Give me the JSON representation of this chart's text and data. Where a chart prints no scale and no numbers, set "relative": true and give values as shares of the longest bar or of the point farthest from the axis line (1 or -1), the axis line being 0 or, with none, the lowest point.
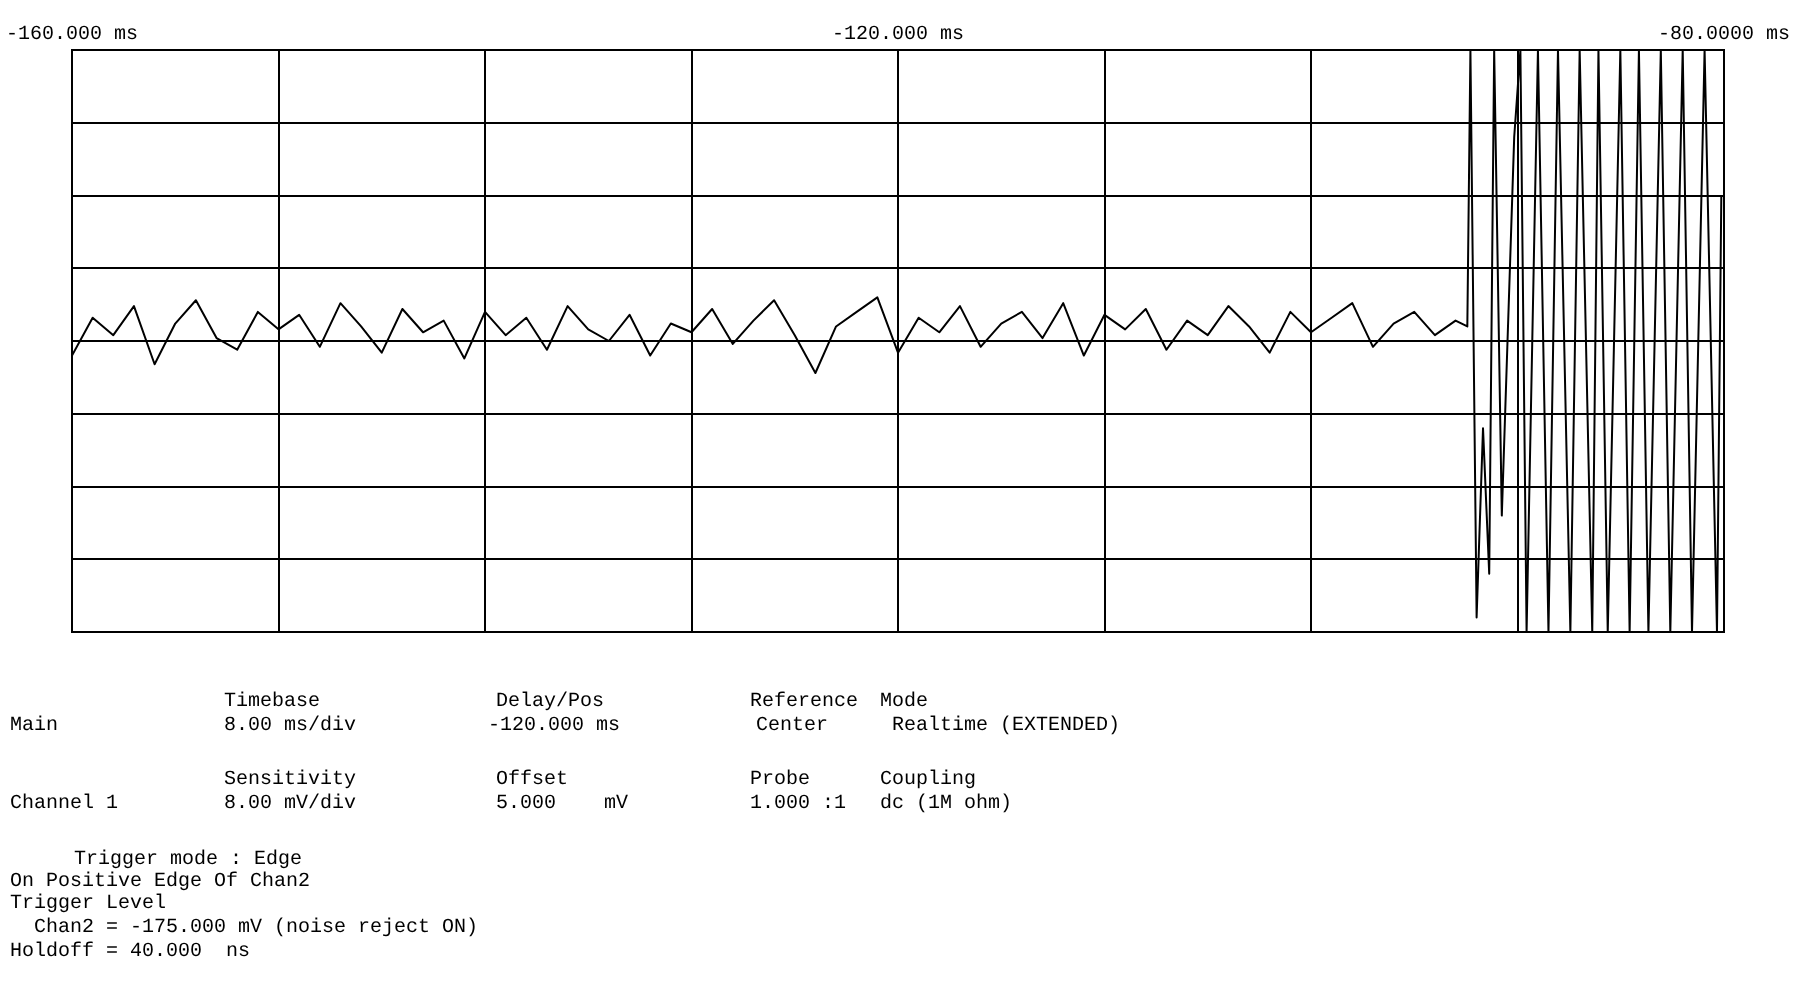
{
  "chart_data": {
    "type": "line",
    "relative": true,
    "grid": true,
    "legend": false,
    "marker": "none",
    "line_style": "solid",
    "xlim": [
      -160,
      -80
    ],
    "xticks": [
      {
        "value": -160,
        "label": "-160.000 ms"
      },
      {
        "value": -150,
        "label": null
      },
      {
        "value": -140,
        "label": null
      },
      {
        "value": -130,
        "label": null
      },
      {
        "value": -120,
        "label": "-120.000 ms"
      },
      {
        "value": -110,
        "label": null
      },
      {
        "value": -100,
        "label": null
      },
      {
        "value": -90,
        "label": null
      },
      {
        "value": -80,
        "label": "-80.0000 ms"
      }
    ],
    "series": [
      {
        "color": "#000000",
        "x": [
          -160,
          -159,
          -158,
          -157,
          -156,
          -155,
          -154,
          -153,
          -152,
          -151,
          -150,
          -149,
          -148,
          -147,
          -146,
          -145,
          -144,
          -143,
          -142,
          -141,
          -140,
          -139,
          -138,
          -137,
          -136,
          -135,
          -134,
          -133,
          -132,
          -131,
          -130,
          -129,
          -128,
          -127,
          -126,
          -125,
          -124,
          -123,
          -122,
          -121,
          -120,
          -119,
          -118,
          -117,
          -116,
          -115,
          -114,
          -113,
          -112,
          -111,
          -110,
          -109,
          -108,
          -107,
          -106,
          -105,
          -104,
          -103,
          -102,
          -101,
          -100,
          -99,
          -98,
          -97,
          -96,
          -95,
          -94,
          -93,
          -92.43,
          -92.28,
          -91.98,
          -91.67,
          -91.37,
          -91.13,
          -90.76,
          -90.16,
          -89.86,
          -89.56,
          -89.01,
          -88.5,
          -88.04,
          -87.44,
          -86.99,
          -86.38,
          -86.08,
          -85.63,
          -85.02,
          -84.57,
          -84.12,
          -83.66,
          -83.06,
          -82.6,
          -82,
          -81.55,
          -80.94,
          -80.34,
          -80.13
        ],
        "values": [
          -0.05,
          0.08,
          0.02,
          0.12,
          -0.08,
          0.06,
          0.14,
          0.01,
          -0.03,
          0.1,
          0.04,
          0.09,
          -0.02,
          0.13,
          0.05,
          -0.04,
          0.11,
          0.03,
          0.07,
          -0.06,
          0.1,
          0.02,
          0.08,
          -0.03,
          0.12,
          0.04,
          0.0,
          0.09,
          -0.05,
          0.06,
          0.03,
          0.11,
          -0.01,
          0.07,
          0.14,
          0.02,
          -0.11,
          0.05,
          0.1,
          0.15,
          -0.04,
          0.08,
          0.03,
          0.12,
          -0.02,
          0.06,
          0.1,
          0.01,
          0.13,
          -0.05,
          0.09,
          0.04,
          0.11,
          -0.03,
          0.07,
          0.02,
          0.12,
          0.05,
          -0.04,
          0.1,
          0.03,
          0.08,
          0.13,
          -0.02,
          0.06,
          0.1,
          0.02,
          0.07,
          0.05,
          1,
          -0.95,
          -0.3,
          -0.8,
          1,
          -0.6,
          0.7,
          1,
          -1,
          1,
          -1,
          1,
          -1,
          1,
          -1,
          1,
          -1,
          1,
          -1,
          1,
          -1,
          1,
          -1,
          1,
          -1,
          1,
          -1,
          0.5
        ]
      }
    ],
    "annotations": [
      "Timebase",
      "Delay/Pos",
      "Reference",
      "Mode",
      "Main",
      "8.00 ms/div",
      "-120.000 ms",
      "Center",
      "Realtime (EXTENDED)",
      "Sensitivity",
      "Offset",
      "Probe",
      "Coupling",
      "Channel 1",
      "8.00 mV/div",
      "5.000    mV",
      "1.000 :1",
      "dc (1M ohm)",
      "Trigger mode : Edge",
      "On Positive Edge Of Chan2",
      "Trigger Level",
      "Chan2 = -175.000 mV (noise reject ON)",
      "Holdoff = 40.000  ns"
    ]
  }
}
